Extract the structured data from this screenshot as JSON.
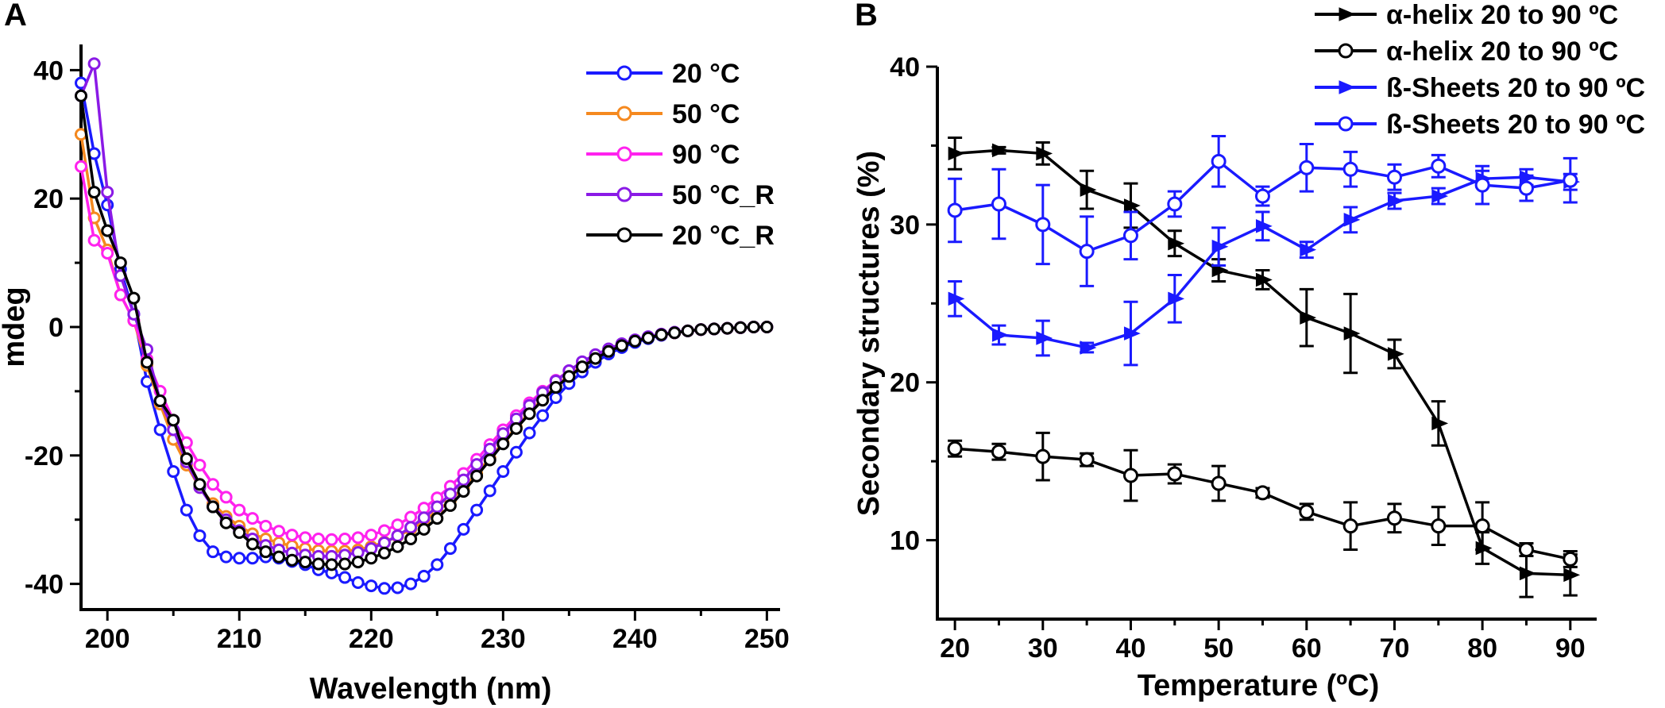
{
  "chart_data": [
    {
      "panel": "A",
      "type": "line",
      "xlabel": "Wavelength (nm)",
      "ylabel": "mdeg",
      "xlim": [
        198,
        251
      ],
      "ylim": [
        -44,
        44
      ],
      "xticks": [
        200,
        210,
        220,
        230,
        240,
        250
      ],
      "yticks": [
        -40,
        -20,
        0,
        20,
        40
      ],
      "xtick_labels": [
        "200",
        "210",
        "220",
        "230",
        "240",
        "250"
      ],
      "ytick_labels": [
        "-40",
        "-20",
        "0",
        "20",
        "40"
      ],
      "legend_position": "top-right",
      "x": [
        198,
        199,
        200,
        201,
        202,
        203,
        204,
        205,
        206,
        207,
        208,
        209,
        210,
        211,
        212,
        213,
        214,
        215,
        216,
        217,
        218,
        219,
        220,
        221,
        222,
        223,
        224,
        225,
        226,
        227,
        228,
        229,
        230,
        231,
        232,
        233,
        234,
        235,
        236,
        237,
        238,
        239,
        240,
        241,
        242,
        243,
        244,
        245,
        246,
        247,
        248,
        249,
        250
      ],
      "series": [
        {
          "name": "20 °C",
          "color": "#1a1aff",
          "values": [
            38,
            27,
            19,
            9,
            2,
            -8.5,
            -16,
            -22.5,
            -28.5,
            -32.5,
            -35,
            -35.8,
            -36,
            -36,
            -35.8,
            -36,
            -36.5,
            -37,
            -37.8,
            -38.3,
            -39,
            -39.8,
            -40.3,
            -40.7,
            -40.6,
            -40,
            -38.8,
            -37,
            -34.5,
            -31.5,
            -28.5,
            -25.5,
            -22.5,
            -19.5,
            -16.5,
            -13.8,
            -11,
            -8.8,
            -7,
            -5.5,
            -4.2,
            -3.2,
            -2.4,
            -1.8,
            -1.3,
            -0.9,
            -0.6,
            -0.4,
            -0.3,
            -0.2,
            -0.1,
            0,
            0
          ]
        },
        {
          "name": "50 °C",
          "color": "#f5891f",
          "values": [
            30,
            17,
            12,
            5,
            1,
            -6,
            -12,
            -17.5,
            -21.5,
            -25,
            -27.5,
            -29.5,
            -31,
            -32.2,
            -33,
            -33.6,
            -34.1,
            -34.5,
            -34.8,
            -34.9,
            -34.9,
            -34.7,
            -34.2,
            -33.5,
            -32.6,
            -31.5,
            -30.2,
            -28.7,
            -27,
            -25,
            -22.8,
            -20.4,
            -18,
            -15.6,
            -13.3,
            -11.2,
            -9.2,
            -7.5,
            -6,
            -4.7,
            -3.6,
            -2.8,
            -2.1,
            -1.6,
            -1.2,
            -0.9,
            -0.6,
            -0.4,
            -0.3,
            -0.2,
            -0.1,
            0,
            0
          ]
        },
        {
          "name": "90 °C",
          "color": "#ff22ee",
          "values": [
            25,
            13.5,
            11.5,
            5,
            1,
            -5,
            -10,
            -14.5,
            -18,
            -21.5,
            -24.5,
            -26.5,
            -28.5,
            -29.8,
            -31,
            -31.8,
            -32.4,
            -32.8,
            -33,
            -33.1,
            -33,
            -32.8,
            -32.4,
            -31.7,
            -30.8,
            -29.6,
            -28.2,
            -26.6,
            -24.8,
            -22.8,
            -20.6,
            -18.3,
            -16,
            -13.8,
            -11.8,
            -10,
            -8.3,
            -6.8,
            -5.5,
            -4.4,
            -3.5,
            -2.7,
            -2.1,
            -1.6,
            -1.2,
            -0.9,
            -0.6,
            -0.4,
            -0.3,
            -0.2,
            -0.1,
            0,
            0
          ]
        },
        {
          "name": "50 °C_R",
          "color": "#8a1ae6",
          "values": [
            36,
            41,
            21,
            8,
            2,
            -3.5,
            -11.5,
            -16,
            -21,
            -25,
            -28,
            -30,
            -31.7,
            -33,
            -34,
            -34.7,
            -35.2,
            -35.5,
            -35.7,
            -35.7,
            -35.5,
            -35.1,
            -34.5,
            -33.6,
            -32.5,
            -31.2,
            -29.7,
            -28,
            -26,
            -23.8,
            -21.4,
            -19,
            -16.6,
            -14.3,
            -12.2,
            -10.2,
            -8.4,
            -6.8,
            -5.4,
            -4.3,
            -3.4,
            -2.6,
            -2,
            -1.5,
            -1.1,
            -0.8,
            -0.6,
            -0.4,
            -0.3,
            -0.2,
            -0.1,
            0,
            0
          ]
        },
        {
          "name": "20 °C_R",
          "color": "#000000",
          "values": [
            36,
            21,
            15,
            10,
            4.5,
            -5.5,
            -11.5,
            -14.5,
            -20.5,
            -24.5,
            -28,
            -30.5,
            -32,
            -33.8,
            -35,
            -35.8,
            -36.3,
            -36.6,
            -36.9,
            -37,
            -36.9,
            -36.6,
            -36,
            -35.2,
            -34.2,
            -33,
            -31.5,
            -29.8,
            -27.8,
            -25.6,
            -23.2,
            -20.7,
            -18.2,
            -15.8,
            -13.5,
            -11.4,
            -9.4,
            -7.7,
            -6.2,
            -4.9,
            -3.8,
            -2.9,
            -2.2,
            -1.7,
            -1.2,
            -0.9,
            -0.6,
            -0.4,
            -0.3,
            -0.2,
            -0.1,
            0,
            0
          ]
        }
      ]
    },
    {
      "panel": "B",
      "type": "line",
      "xlabel": "Temperature (ºC)",
      "ylabel": "Secondary structures (%)",
      "xlim": [
        18,
        93
      ],
      "ylim": [
        5,
        40
      ],
      "xticks": [
        20,
        30,
        40,
        50,
        60,
        70,
        80,
        90
      ],
      "yticks": [
        10,
        20,
        30,
        40
      ],
      "xtick_labels": [
        "20",
        "30",
        "40",
        "50",
        "60",
        "70",
        "80",
        "90"
      ],
      "ytick_labels": [
        "10",
        "20",
        "30",
        "40"
      ],
      "legend_position": "top-right (outside)",
      "x": [
        20,
        25,
        30,
        35,
        40,
        45,
        50,
        55,
        60,
        65,
        70,
        75,
        80,
        85,
        90
      ],
      "series": [
        {
          "name": "α-helix 20 to 90 ºC",
          "color": "#000000",
          "marker": "filled-triangle",
          "values": [
            34.5,
            34.7,
            34.5,
            32.2,
            31.2,
            28.8,
            27.1,
            26.5,
            24.1,
            23.1,
            21.8,
            17.4,
            9.5,
            7.9,
            7.8
          ],
          "errors": [
            1.0,
            0.2,
            0.7,
            1.2,
            1.4,
            0.8,
            0.7,
            0.6,
            1.8,
            2.5,
            0.9,
            1.4,
            1.0,
            1.5,
            1.3
          ]
        },
        {
          "name": "α-helix 20 to 90 ºC",
          "color": "#000000",
          "marker": "open-circle",
          "values": [
            15.8,
            15.6,
            15.3,
            15.1,
            14.1,
            14.2,
            13.6,
            13.0,
            11.8,
            10.9,
            11.4,
            10.9,
            10.9,
            9.4,
            8.8
          ],
          "errors": [
            0.5,
            0.5,
            1.5,
            0.4,
            1.6,
            0.6,
            1.1,
            0.3,
            0.5,
            1.5,
            0.9,
            1.2,
            1.5,
            0.4,
            0.5
          ]
        },
        {
          "name": "ß-Sheets 20 to 90 ºC",
          "color": "#1a1aff",
          "marker": "filled-triangle",
          "values": [
            25.3,
            23.0,
            22.8,
            22.2,
            23.1,
            25.3,
            28.6,
            29.9,
            28.4,
            30.3,
            31.5,
            31.8,
            32.9,
            33.0,
            32.7
          ],
          "errors": [
            1.1,
            0.6,
            1.1,
            0.3,
            2.0,
            1.5,
            1.2,
            0.9,
            0.5,
            0.8,
            0.5,
            0.5,
            0.5,
            0.5,
            0.5
          ]
        },
        {
          "name": "ß-Sheets 20 to 90 ºC",
          "color": "#1a1aff",
          "marker": "open-circle",
          "values": [
            30.9,
            31.3,
            30.0,
            28.3,
            29.3,
            31.3,
            34.0,
            31.8,
            33.6,
            33.5,
            33.0,
            33.7,
            32.5,
            32.3,
            32.8
          ],
          "errors": [
            2.0,
            2.2,
            2.5,
            2.2,
            1.5,
            0.8,
            1.6,
            0.6,
            1.5,
            1.1,
            0.8,
            0.7,
            1.2,
            0.8,
            1.4
          ]
        }
      ]
    }
  ]
}
